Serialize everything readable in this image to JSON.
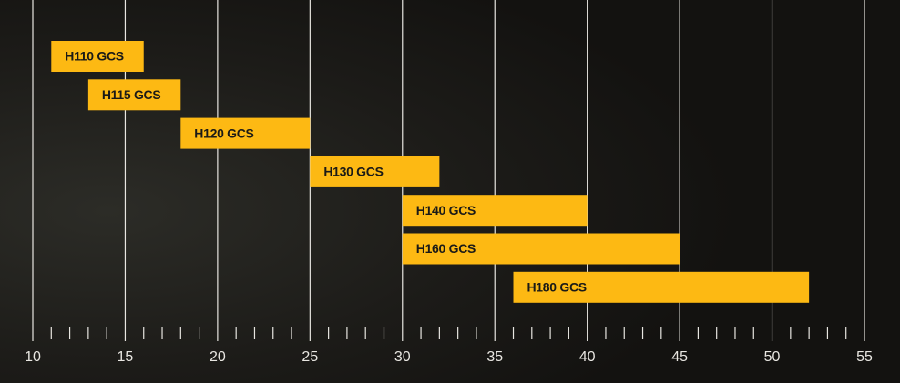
{
  "chart_data": {
    "type": "range-bar",
    "categories": [
      "H110 GCS",
      "H115 GCS",
      "H120 GCS",
      "H130 GCS",
      "H140 GCS",
      "H160 GCS",
      "H180 GCS"
    ],
    "starts": [
      11,
      13,
      18,
      25,
      30,
      30,
      36
    ],
    "ends": [
      16,
      18,
      25,
      32,
      40,
      45,
      52
    ],
    "color": "#fdb913",
    "xlim": [
      10,
      55
    ],
    "xticks": [
      10,
      15,
      20,
      25,
      30,
      35,
      40,
      45,
      50,
      55
    ],
    "xminorticks": [
      11,
      12,
      13,
      14,
      16,
      17,
      18,
      19,
      21,
      22,
      23,
      24,
      26,
      27,
      28,
      29,
      31,
      32,
      33,
      34,
      36,
      37,
      38,
      39,
      41,
      42,
      43,
      44,
      46,
      47,
      48,
      49,
      51,
      52,
      53,
      54
    ],
    "grid": true
  }
}
